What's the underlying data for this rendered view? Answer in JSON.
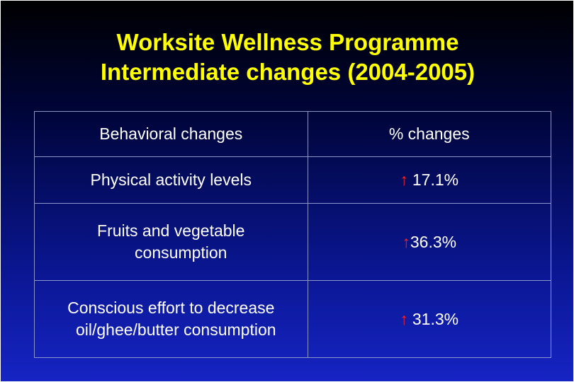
{
  "slide": {
    "title_line1": "Worksite Wellness Programme",
    "title_line2": "Intermediate changes (2004-2005)"
  },
  "table": {
    "headers": [
      "Behavioral changes",
      "% changes"
    ],
    "rows": [
      {
        "label_line1": "Physical activity levels",
        "label_line2": "",
        "arrow": "↑",
        "value": "17.1%"
      },
      {
        "label_line1": "Fruits and vegetable",
        "label_line2": "consumption",
        "arrow": "↑",
        "value": "36.3%"
      },
      {
        "label_line1": "Conscious effort to decrease",
        "label_line2": "oil/ghee/butter consumption",
        "arrow": "↑",
        "value": "31.3%"
      }
    ]
  },
  "colors": {
    "title": "#ffff00",
    "text": "#ffffff",
    "arrow": "#ff2020",
    "background_top": "#000000",
    "background_bottom": "#1624c4"
  }
}
